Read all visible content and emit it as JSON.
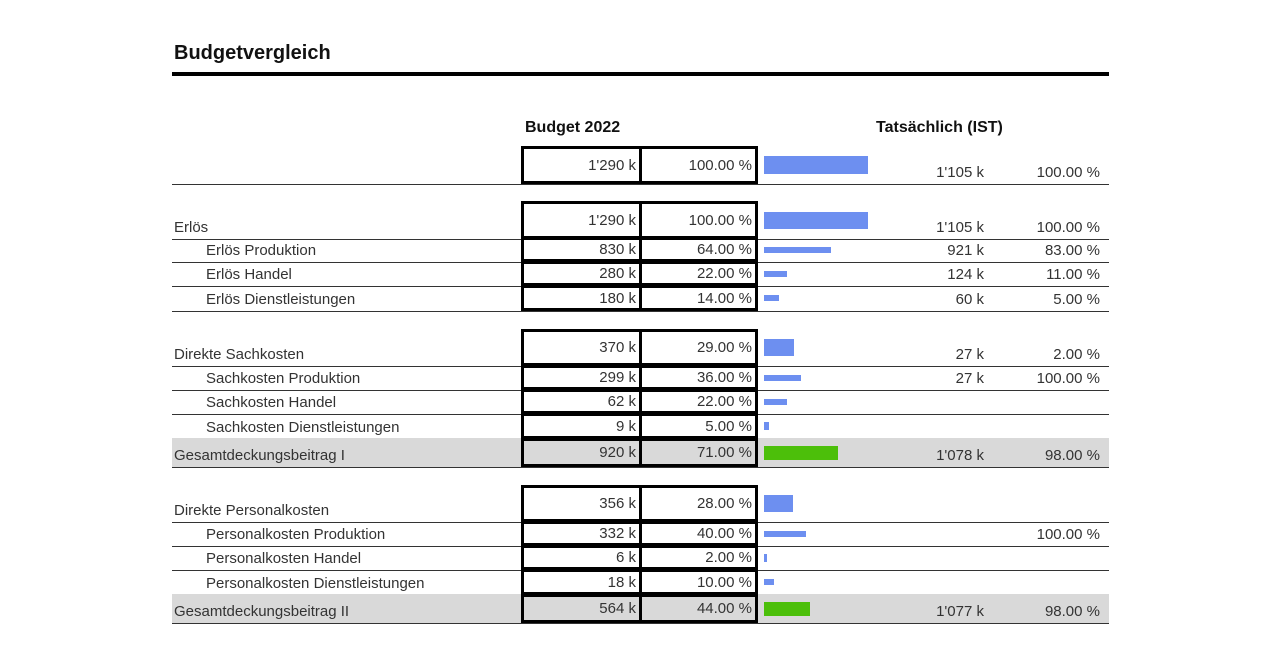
{
  "title": "Budgetvergleich",
  "headers": {
    "budget": "Budget 2022",
    "actual": "Tatsächlich (IST)"
  },
  "colors": {
    "bar": "#6d8ff0",
    "bar_total": "#4cbf0a",
    "shade": "#d9d9d9"
  },
  "rows": [
    {
      "label": "",
      "budget": "1'290 k",
      "budget_pct": "100.00 %",
      "bar_pct": 100,
      "actual": "1'105 k",
      "actual_pct": "100.00 %"
    },
    {
      "label": "Erlös",
      "budget": "1'290 k",
      "budget_pct": "100.00 %",
      "bar_pct": 100,
      "actual": "1'105 k",
      "actual_pct": "100.00 %"
    },
    {
      "label": "Erlös Produktion",
      "budget": "830 k",
      "budget_pct": "64.00 %",
      "bar_pct": 64,
      "actual": "921 k",
      "actual_pct": "83.00 %"
    },
    {
      "label": "Erlös Handel",
      "budget": "280 k",
      "budget_pct": "22.00 %",
      "bar_pct": 22,
      "actual": "124 k",
      "actual_pct": "11.00 %"
    },
    {
      "label": "Erlös Dienstleistungen",
      "budget": "180 k",
      "budget_pct": "14.00 %",
      "bar_pct": 14,
      "actual": "60 k",
      "actual_pct": "5.00 %"
    },
    {
      "label": "Direkte Sachkosten",
      "budget": "370 k",
      "budget_pct": "29.00 %",
      "bar_pct": 29,
      "actual": "27 k",
      "actual_pct": "2.00 %"
    },
    {
      "label": "Sachkosten Produktion",
      "budget": "299 k",
      "budget_pct": "36.00 %",
      "bar_pct": 36,
      "actual": "27 k",
      "actual_pct": "100.00 %"
    },
    {
      "label": "Sachkosten Handel",
      "budget": "62 k",
      "budget_pct": "22.00 %",
      "bar_pct": 22,
      "actual": "",
      "actual_pct": ""
    },
    {
      "label": "Sachkosten Dienstleistungen",
      "budget": "9 k",
      "budget_pct": "5.00 %",
      "bar_pct": 5,
      "actual": "",
      "actual_pct": ""
    },
    {
      "label": "Gesamtdeckungsbeitrag I",
      "budget": "920 k",
      "budget_pct": "71.00 %",
      "bar_pct": 71,
      "actual": "1'078 k",
      "actual_pct": "98.00 %"
    },
    {
      "label": "Direkte Personalkosten",
      "budget": "356 k",
      "budget_pct": "28.00 %",
      "bar_pct": 28,
      "actual": "",
      "actual_pct": ""
    },
    {
      "label": "Personalkosten Produktion",
      "budget": "332 k",
      "budget_pct": "40.00 %",
      "bar_pct": 40,
      "actual": "",
      "actual_pct": "100.00 %"
    },
    {
      "label": "Personalkosten Handel",
      "budget": "6 k",
      "budget_pct": "2.00 %",
      "bar_pct": 2,
      "actual": "",
      "actual_pct": ""
    },
    {
      "label": "Personalkosten Dienstleistungen",
      "budget": "18 k",
      "budget_pct": "10.00 %",
      "bar_pct": 10,
      "actual": "",
      "actual_pct": ""
    },
    {
      "label": "Gesamtdeckungsbeitrag II",
      "budget": "564 k",
      "budget_pct": "44.00 %",
      "bar_pct": 44,
      "actual": "1'077 k",
      "actual_pct": "98.00 %"
    }
  ]
}
